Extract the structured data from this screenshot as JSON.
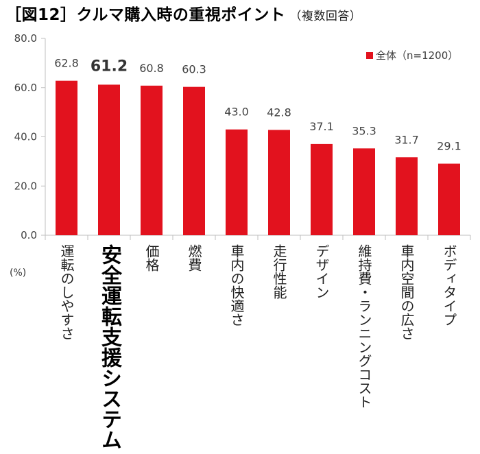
{
  "title": "［図12］クルマ購入時の重視ポイント",
  "subtitle": "（複数回答）",
  "unit_label": "(%)",
  "colors": {
    "bar": "#e2121e",
    "axis": "#bfbfbf",
    "text": "#404040"
  },
  "chart_data": {
    "type": "bar",
    "categories": [
      "運転のしやすさ",
      "安全運転支援システム",
      "価格",
      "燃費",
      "車内の快適さ",
      "走行性能",
      "デザイン",
      "維持費・ランニングコスト",
      "車内空間の広さ",
      "ボディタイプ"
    ],
    "series": [
      {
        "name": "全体（n=1200）",
        "values": [
          62.8,
          61.2,
          60.8,
          60.3,
          43.0,
          42.8,
          37.1,
          35.3,
          31.7,
          29.1
        ]
      }
    ],
    "value_labels": [
      "62.8",
      "61.2",
      "60.8",
      "60.3",
      "43.0",
      "42.8",
      "37.1",
      "35.3",
      "31.7",
      "29.1"
    ],
    "highlight_index": 1,
    "y_ticks": [
      "0.0",
      "20.0",
      "40.0",
      "60.0",
      "80.0"
    ],
    "ylim": [
      0,
      80
    ],
    "legend_position": "top-right",
    "grid": false
  }
}
